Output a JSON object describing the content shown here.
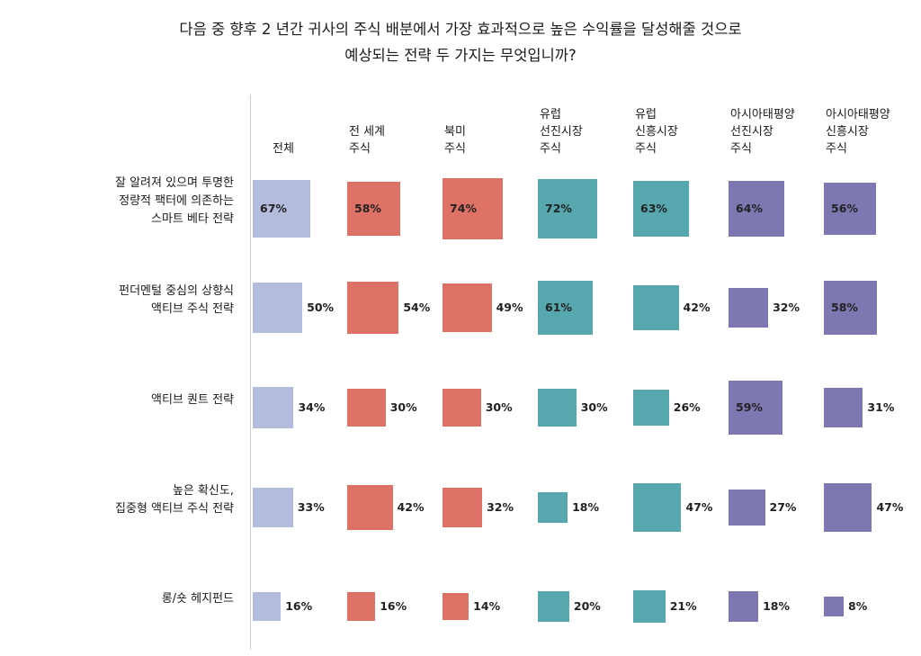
{
  "title": {
    "line1": "다음 중 향후 2 년간 귀사의 주식 배분에서 가장 효과적으로 높은 수익률을 달성해줄 것으로",
    "line2": "예상되는 전략 두 가지는 무엇입니까?"
  },
  "chart_data": {
    "type": "table",
    "title": "다음 중 향후 2 년간 귀사의 주식 배분에서 가장 효과적으로 높은 수익률을 달성해줄 것으로 예상되는 전략 두 가지는 무엇입니까?",
    "columns": [
      {
        "label": [
          "전체"
        ],
        "color": "#b3bcdc"
      },
      {
        "label": [
          "전 세계",
          "주식"
        ],
        "color": "#de7266"
      },
      {
        "label": [
          "북미",
          "주식"
        ],
        "color": "#de7266"
      },
      {
        "label": [
          "유럽",
          "선진시장",
          "주식"
        ],
        "color": "#56a7ae"
      },
      {
        "label": [
          "유럽",
          "신흥시장",
          "주식"
        ],
        "color": "#56a7ae"
      },
      {
        "label": [
          "아시아태평양",
          "선진시장",
          "주식"
        ],
        "color": "#7d77b2"
      },
      {
        "label": [
          "아시아태평양",
          "신흥시장",
          "주식"
        ],
        "color": "#7d77b2"
      }
    ],
    "rows": [
      {
        "label": [
          "잘 알려져 있으며 투명한",
          "정량적 팩터에 의존하는",
          "스마트 베타 전략"
        ],
        "values": [
          67,
          58,
          74,
          72,
          63,
          64,
          56
        ]
      },
      {
        "label": [
          "펀더멘털 중심의 상향식",
          "액티브 주식 전략"
        ],
        "values": [
          50,
          54,
          49,
          61,
          42,
          32,
          58
        ]
      },
      {
        "label": [
          "액티브 퀀트 전략"
        ],
        "values": [
          34,
          30,
          30,
          30,
          26,
          59,
          31
        ]
      },
      {
        "label": [
          "높은 확신도,",
          "집중형 액티브 주식 전략"
        ],
        "values": [
          33,
          42,
          32,
          18,
          47,
          27,
          47
        ]
      },
      {
        "label": [
          "롱/숏 헤지펀드"
        ],
        "values": [
          16,
          16,
          14,
          20,
          21,
          18,
          8
        ]
      }
    ],
    "value_suffix": "%"
  }
}
